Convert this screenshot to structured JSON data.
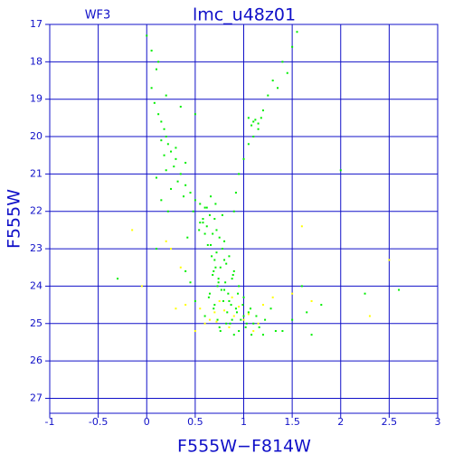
{
  "chart_data": {
    "type": "scatter",
    "title": "lmc_u48z01",
    "annotation": "WF3",
    "xlabel": "F555W−F814W",
    "ylabel": "F555W",
    "xlim": [
      -1,
      3
    ],
    "ylim": [
      17,
      27.4
    ],
    "invert_y": true,
    "xticks": [
      -1,
      -0.5,
      0,
      0.5,
      1,
      1.5,
      2,
      2.5,
      3
    ],
    "yticks": [
      17,
      18,
      19,
      20,
      21,
      22,
      23,
      24,
      25,
      26,
      27
    ],
    "grid": true,
    "grid_color": "#1010c8",
    "series": [
      {
        "color": "#00ee00",
        "x": [
          0.0,
          0.05,
          0.1,
          0.05,
          0.08,
          0.12,
          0.15,
          0.18,
          0.2,
          0.15,
          0.22,
          0.25,
          0.18,
          0.3,
          0.28,
          0.2,
          0.35,
          0.32,
          0.4,
          0.25,
          0.45,
          0.38,
          0.5,
          0.55,
          0.6,
          0.48,
          0.65,
          0.7,
          0.58,
          0.62,
          0.72,
          0.68,
          0.75,
          0.8,
          0.66,
          0.78,
          0.72,
          0.85,
          0.7,
          0.82,
          0.76,
          0.9,
          0.68,
          0.88,
          0.74,
          0.95,
          0.8,
          0.65,
          1.0,
          0.85,
          0.7,
          0.92,
          1.05,
          0.6,
          0.88,
          1.1,
          0.75,
          0.95,
          1.2,
          0.82,
          1.0,
          0.9,
          1.05,
          1.1,
          1.12,
          1.15,
          1.08,
          1.18,
          0.9,
          0.92,
          0.95,
          1.0,
          1.05,
          1.1,
          1.15,
          1.2,
          1.25,
          1.3,
          1.4,
          1.5,
          1.55,
          1.45,
          1.35,
          2.0,
          1.6,
          1.8,
          2.25,
          2.6,
          1.5,
          1.4,
          -0.3,
          0.1,
          0.55,
          0.6,
          0.63,
          0.67,
          0.71,
          0.74,
          0.77,
          0.79,
          0.83,
          0.86,
          0.64,
          0.69,
          0.73,
          0.76,
          0.81,
          0.84,
          0.87,
          0.93,
          0.97,
          1.02,
          1.07,
          1.13,
          0.78,
          0.71,
          0.66,
          0.62,
          0.58,
          0.54,
          0.69,
          0.73,
          0.8,
          0.89,
          0.94,
          0.99,
          1.03,
          1.08,
          1.16,
          1.22,
          1.28,
          1.33,
          0.5,
          0.45,
          0.4,
          0.1,
          0.15,
          0.22,
          0.3,
          0.4,
          0.5,
          1.65,
          1.7,
          0.2,
          0.12,
          0.35,
          0.42
        ],
        "values": [
          17.3,
          17.7,
          18.2,
          18.7,
          19.1,
          19.4,
          19.6,
          19.8,
          20.0,
          20.1,
          20.2,
          20.4,
          20.5,
          20.6,
          20.8,
          20.9,
          21.0,
          21.2,
          21.3,
          21.4,
          21.5,
          21.6,
          21.7,
          21.8,
          21.9,
          22.0,
          22.1,
          22.2,
          22.3,
          22.4,
          22.5,
          22.6,
          22.7,
          22.8,
          22.9,
          23.0,
          23.1,
          23.2,
          23.3,
          23.4,
          23.5,
          23.6,
          23.7,
          23.8,
          23.9,
          24.0,
          24.1,
          24.2,
          24.3,
          24.4,
          24.5,
          24.6,
          24.7,
          24.8,
          24.9,
          25.0,
          25.1,
          25.2,
          25.3,
          25.0,
          24.8,
          25.3,
          19.5,
          19.6,
          19.55,
          19.65,
          19.7,
          19.5,
          22.0,
          21.5,
          21.0,
          20.6,
          20.2,
          20.0,
          19.8,
          19.3,
          18.9,
          18.5,
          18.0,
          17.6,
          17.2,
          18.3,
          18.7,
          20.9,
          24.0,
          24.5,
          24.2,
          24.1,
          24.9,
          25.2,
          23.8,
          23.0,
          22.3,
          22.6,
          22.9,
          23.2,
          23.5,
          23.8,
          24.1,
          24.4,
          24.7,
          25.0,
          24.3,
          24.6,
          24.9,
          25.2,
          23.9,
          24.2,
          24.5,
          24.7,
          24.9,
          25.1,
          24.6,
          24.8,
          22.1,
          21.8,
          21.6,
          21.9,
          22.2,
          22.5,
          23.6,
          24.0,
          23.3,
          23.7,
          24.2,
          24.5,
          25.0,
          25.3,
          25.1,
          24.9,
          24.6,
          25.2,
          24.4,
          23.9,
          23.6,
          21.1,
          21.7,
          22.0,
          20.3,
          20.7,
          19.4,
          24.7,
          25.3,
          18.9,
          18.0,
          19.2,
          22.7
        ]
      },
      {
        "color": "#ffff00",
        "x": [
          -0.15,
          0.2,
          0.25,
          1.6,
          0.4,
          0.55,
          0.7,
          0.8,
          0.9,
          1.0,
          1.2,
          1.3,
          1.5,
          1.7,
          2.3,
          2.5,
          0.6,
          0.85,
          1.1,
          0.3,
          0.75,
          0.95,
          1.05,
          0.65,
          1.15,
          0.5,
          0.88,
          0.72,
          -0.05,
          0.35
        ],
        "values": [
          22.5,
          22.8,
          23.0,
          22.4,
          24.5,
          24.6,
          24.7,
          24.65,
          24.8,
          24.9,
          24.5,
          24.3,
          24.2,
          24.4,
          24.8,
          23.3,
          25.0,
          25.1,
          25.2,
          24.6,
          24.4,
          24.55,
          24.75,
          24.9,
          25.0,
          25.2,
          24.3,
          24.95,
          24.0,
          23.5
        ]
      }
    ]
  }
}
